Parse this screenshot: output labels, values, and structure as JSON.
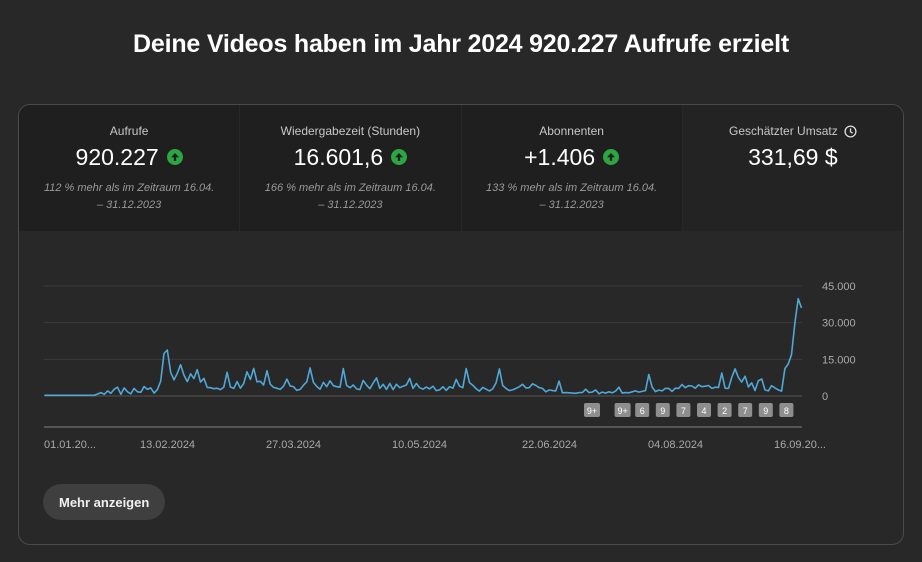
{
  "headline": "Deine Videos haben im Jahr 2024 920.227 Aufrufe erzielt",
  "metrics": [
    {
      "label": "Aufrufe",
      "value": "920.227",
      "note": "112 % mehr als im Zeitraum 16.04. – 31.12.2023",
      "trend": "up"
    },
    {
      "label": "Wiedergabezeit (Stunden)",
      "value": "16.601,6",
      "note": "166 % mehr als im Zeitraum 16.04. – 31.12.2023",
      "trend": "up"
    },
    {
      "label": "Abonnenten",
      "value": "+1.406",
      "note": "133 % mehr als im Zeitraum 16.04. – 31.12.2023",
      "trend": "up"
    },
    {
      "label": "Geschätzter Umsatz",
      "value": "331,69 $",
      "note": "",
      "icon": "clock-icon"
    }
  ],
  "more_button": "Mehr anzeigen",
  "colors": {
    "line": "#4fa8d8",
    "up": "#2ba640",
    "marker": "#8e8e8e"
  },
  "chart_data": {
    "type": "line",
    "x_tick_labels": [
      "01.01.20...",
      "13.02.2024",
      "27.03.2024",
      "10.05.2024",
      "22.06.2024",
      "04.08.2024",
      "16.09.20..."
    ],
    "y_tick_labels": [
      "45.000",
      "30.000",
      "15.000",
      "0"
    ],
    "ylim": [
      0,
      45000
    ],
    "grid": true,
    "series": [
      {
        "values": [
          300,
          300,
          300,
          300,
          300,
          300,
          300,
          300,
          300,
          300,
          300,
          300,
          300,
          300,
          300,
          300,
          800,
          1400,
          700,
          2100,
          1100,
          2800,
          3600,
          700,
          3300,
          1700,
          900,
          3100,
          1700,
          1500,
          3900,
          2700,
          3300,
          1200,
          2600,
          6100,
          17400,
          18800,
          9600,
          6600,
          9300,
          12800,
          8600,
          5900,
          9100,
          7100,
          10800,
          5700,
          7200,
          3500,
          3400,
          3000,
          3200,
          2600,
          3600,
          9700,
          3700,
          3100,
          5900,
          3200,
          5100,
          9900,
          6800,
          11300,
          5800,
          6000,
          4500,
          10300,
          4800,
          3500,
          3200,
          2700,
          4100,
          6900,
          4100,
          3800,
          2300,
          2800,
          4400,
          5800,
          11500,
          5600,
          3900,
          2800,
          5600,
          3800,
          6200,
          4200,
          3800,
          3600,
          11200,
          4300,
          3400,
          4500,
          2900,
          2600,
          6400,
          4400,
          3000,
          5300,
          7400,
          3100,
          4800,
          2700,
          5100,
          2600,
          4800,
          3400,
          4000,
          4500,
          7200,
          3100,
          5100,
          3400,
          2800,
          3700,
          2900,
          4000,
          2200,
          2500,
          3800,
          2300,
          3800,
          3200,
          6800,
          4000,
          3400,
          11200,
          5500,
          4400,
          3000,
          2000,
          3500,
          2800,
          2100,
          2900,
          5300,
          11100,
          4300,
          3100,
          2200,
          2500,
          3100,
          3800,
          4800,
          3300,
          3400,
          5000,
          4300,
          3400,
          3100,
          1700,
          2500,
          2200,
          2100,
          6100,
          1300,
          1400,
          1300,
          1200,
          1100,
          1400,
          1400,
          2800,
          1400,
          1600,
          2500,
          900,
          1600,
          1200,
          1700,
          1300,
          2000,
          3600,
          1200,
          1400,
          1300,
          1700,
          2100,
          1600,
          1900,
          2200,
          8800,
          3700,
          1800,
          2400,
          2100,
          3100,
          3100,
          1900,
          3200,
          3100,
          4700,
          3400,
          4200,
          4100,
          3200,
          4600,
          3800,
          4000,
          4300,
          3100,
          3600,
          3500,
          9400,
          3200,
          3100,
          7700,
          11100,
          7600,
          5700,
          8100,
          3700,
          5400,
          2200,
          6200,
          7000,
          2500,
          2100,
          4200,
          3300,
          2500,
          2000,
          11200,
          13100,
          16900,
          29900,
          39800,
          36000
        ]
      }
    ],
    "annotation_markers": [
      "9+",
      "9+",
      "6",
      "9",
      "7",
      "4",
      "2",
      "7",
      "9",
      "8"
    ]
  }
}
